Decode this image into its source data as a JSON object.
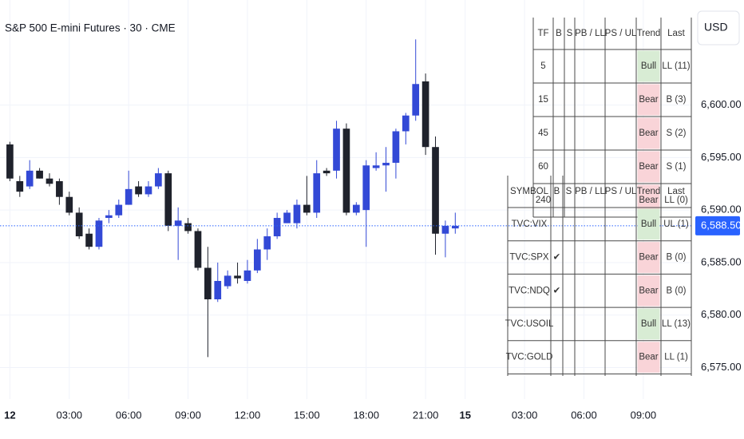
{
  "chart_data": {
    "type": "candlestick",
    "title": "S&P 500 E-mini Futures · 30 · CME",
    "currency": "USD",
    "x": [
      0,
      1,
      2,
      3,
      4,
      5,
      6,
      7,
      8,
      9,
      10,
      11,
      12,
      13,
      14,
      15,
      16,
      17,
      18,
      19,
      20,
      21,
      22,
      23,
      24,
      25,
      26,
      27,
      28,
      29,
      30,
      31,
      32,
      33,
      34,
      35,
      36,
      37,
      38,
      39,
      40,
      41,
      42,
      43,
      44,
      45
    ],
    "open": [
      6596.25,
      6592.75,
      6592.25,
      6593.75,
      6593,
      6592.75,
      6591.25,
      6589.75,
      6587.75,
      6586.5,
      6589.25,
      6589.5,
      6590.5,
      6592.25,
      6591.5,
      6592.25,
      6593.5,
      6588.5,
      6588.75,
      6588,
      6584.5,
      6581.5,
      6582.75,
      6583.75,
      6583.25,
      6584.25,
      6586.25,
      6587.5,
      6588.75,
      6588.75,
      6590.5,
      6589.75,
      6593.75,
      6593.75,
      6597.75,
      6589.75,
      6590,
      6594,
      6594.25,
      6594.5,
      6597.5,
      6599,
      6602.25,
      6596,
      6587.75,
      6588.25
    ],
    "high": [
      6596.5,
      6593.25,
      6594.75,
      6594,
      6593.5,
      6593,
      6591.75,
      6590.25,
      6588.25,
      6589.25,
      6590,
      6591,
      6593.75,
      6592.75,
      6592.75,
      6594,
      6593.75,
      6590.25,
      6589.25,
      6588.25,
      6586.5,
      6585,
      6584.25,
      6585,
      6585.25,
      6587.25,
      6588.25,
      6589.75,
      6590,
      6591,
      6593.25,
      6594.75,
      6594,
      6598.5,
      6598.25,
      6590.75,
      6594.75,
      6595.5,
      6596,
      6597.75,
      6599.25,
      6606.25,
      6603,
      6597,
      6589,
      6589.75
    ],
    "low": [
      6592.75,
      6591.25,
      6592,
      6593,
      6592.25,
      6590.5,
      6589.5,
      6587.25,
      6586.25,
      6586.25,
      6588.75,
      6589.25,
      6590.5,
      6591.25,
      6591.25,
      6592,
      6588,
      6585.25,
      6587.75,
      6584.25,
      6576,
      6581.25,
      6582.5,
      6583,
      6583,
      6584,
      6585.25,
      6587.25,
      6588.75,
      6588.25,
      6589.5,
      6589.25,
      6593.25,
      6593,
      6589.5,
      6589.5,
      6586.5,
      6593.75,
      6591.75,
      6593,
      6596.25,
      6598.5,
      6595.25,
      6585.75,
      6585.5,
      6587.75
    ],
    "close": [
      6593,
      6591.75,
      6593.75,
      6593,
      6592.5,
      6591.25,
      6589.75,
      6587.5,
      6586.5,
      6589,
      6589.5,
      6590.5,
      6592,
      6591.5,
      6592.25,
      6593.5,
      6588.5,
      6589,
      6588,
      6584.5,
      6581.5,
      6583.25,
      6583.75,
      6583.5,
      6584.25,
      6586.25,
      6587.5,
      6589.25,
      6589.75,
      6590.5,
      6589.75,
      6593.5,
      6593.5,
      6597.75,
      6589.75,
      6590.5,
      6594.25,
      6594.25,
      6594.5,
      6597.5,
      6599,
      6602,
      6596,
      6587.75,
      6588.5,
      6588.5
    ],
    "up_color": "#3349d6",
    "down_color": "#1f222c",
    "xlim": [
      -1,
      68.85
    ],
    "xticks": [
      {
        "value": 0,
        "label": "12",
        "bold": true
      },
      {
        "value": 6,
        "label": "03:00"
      },
      {
        "value": 12,
        "label": "06:00"
      },
      {
        "value": 18,
        "label": "09:00"
      },
      {
        "value": 24,
        "label": "12:00"
      },
      {
        "value": 30,
        "label": "15:00"
      },
      {
        "value": 36,
        "label": "18:00"
      },
      {
        "value": 42,
        "label": "21:00"
      },
      {
        "value": 46,
        "label": "15",
        "bold": true
      },
      {
        "value": 52,
        "label": "03:00"
      },
      {
        "value": 58,
        "label": "06:00"
      },
      {
        "value": 64,
        "label": "09:00"
      }
    ],
    "ylim": [
      6572,
      6610
    ],
    "yticks": [
      {
        "value": 6575,
        "label": "6,575.00"
      },
      {
        "value": 6580,
        "label": "6,580.00"
      },
      {
        "value": 6585,
        "label": "6,585.00"
      },
      {
        "value": 6590,
        "label": "6,590.00"
      },
      {
        "value": 6595,
        "label": "6,595.00"
      },
      {
        "value": 6600,
        "label": "6,600.00"
      }
    ],
    "grid": true,
    "last_price": {
      "value": 6588.5,
      "label": "6,588.50",
      "color": "#2962ff"
    }
  },
  "timeframe_table": {
    "header": [
      "TF",
      "B",
      "S",
      "PB / LL",
      "PS / UL",
      "Trend",
      "Last"
    ],
    "rows": [
      {
        "tf": "5",
        "trend": "Bull",
        "last": "LL (11)"
      },
      {
        "tf": "15",
        "trend": "Bear",
        "last": "B (3)"
      },
      {
        "tf": "45",
        "trend": "Bear",
        "last": "S (2)"
      },
      {
        "tf": "60",
        "trend": "Bear",
        "last": "S (1)"
      },
      {
        "tf": "240",
        "trend": "Bear",
        "last": "LL (0)"
      }
    ]
  },
  "symbol_table": {
    "header": [
      "SYMBOL",
      "B",
      "S",
      "PB / LL",
      "PS / UL",
      "Trend",
      "Last"
    ],
    "rows": [
      {
        "tf": "TVC:VIX",
        "trend": "Bull",
        "last": "UL (1)"
      },
      {
        "tf": "TVC:SPX",
        "b": "✔",
        "trend": "Bear",
        "last": "B (0)"
      },
      {
        "tf": "TVC:NDQ",
        "b": "✔",
        "trend": "Bear",
        "last": "B (0)"
      },
      {
        "tf": "TVC:USOIL",
        "trend": "Bull",
        "last": "LL (13)"
      },
      {
        "tf": "TVC:GOLD",
        "trend": "Bear",
        "last": "LL (1)"
      }
    ]
  },
  "trend_colors": {
    "Bull": "#d8ecd4",
    "Bear": "#f9d4d8"
  }
}
